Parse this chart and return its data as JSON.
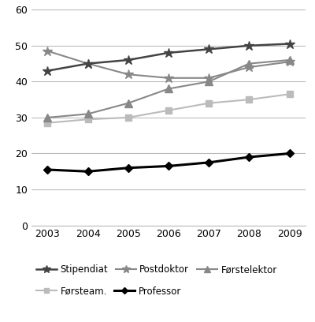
{
  "years": [
    2003,
    2004,
    2005,
    2006,
    2007,
    2008,
    2009
  ],
  "series": [
    {
      "name": "Stipendiat",
      "values": [
        43,
        45,
        46,
        48,
        49,
        50,
        50.5
      ],
      "color": "#444444",
      "marker": "*",
      "linewidth": 1.8,
      "markersize": 9,
      "zorder": 4
    },
    {
      "name": "Postdoktor",
      "values": [
        48.5,
        45,
        42,
        41,
        41,
        44,
        45.5
      ],
      "color": "#888888",
      "marker": "*",
      "linewidth": 1.5,
      "markersize": 9,
      "zorder": 3
    },
    {
      "name": "Førstelektor",
      "values": [
        30,
        31,
        34,
        38,
        40,
        45,
        46
      ],
      "color": "#888888",
      "marker": "^",
      "linewidth": 1.5,
      "markersize": 7,
      "zorder": 3
    },
    {
      "name": "Førsteam.",
      "values": [
        28.5,
        29.5,
        30,
        32,
        34,
        35,
        36.5
      ],
      "color": "#bbbbbb",
      "marker": "s",
      "linewidth": 1.5,
      "markersize": 6,
      "zorder": 2
    },
    {
      "name": "Professor",
      "values": [
        15.5,
        15,
        16,
        16.5,
        17.5,
        19,
        20
      ],
      "color": "#000000",
      "marker": "D",
      "linewidth": 2.2,
      "markersize": 5,
      "zorder": 5
    }
  ],
  "ylim": [
    0,
    60
  ],
  "yticks": [
    0,
    10,
    20,
    30,
    40,
    50,
    60
  ],
  "xlim": [
    2002.6,
    2009.4
  ],
  "xticks": [
    2003,
    2004,
    2005,
    2006,
    2007,
    2008,
    2009
  ],
  "grid_color": "#bbbbbb",
  "background_color": "#ffffff",
  "legend_row1": [
    "Stipendiat",
    "Postdoktor",
    "Førstelektor"
  ],
  "legend_row2": [
    "Førsteam.",
    "Professor"
  ]
}
